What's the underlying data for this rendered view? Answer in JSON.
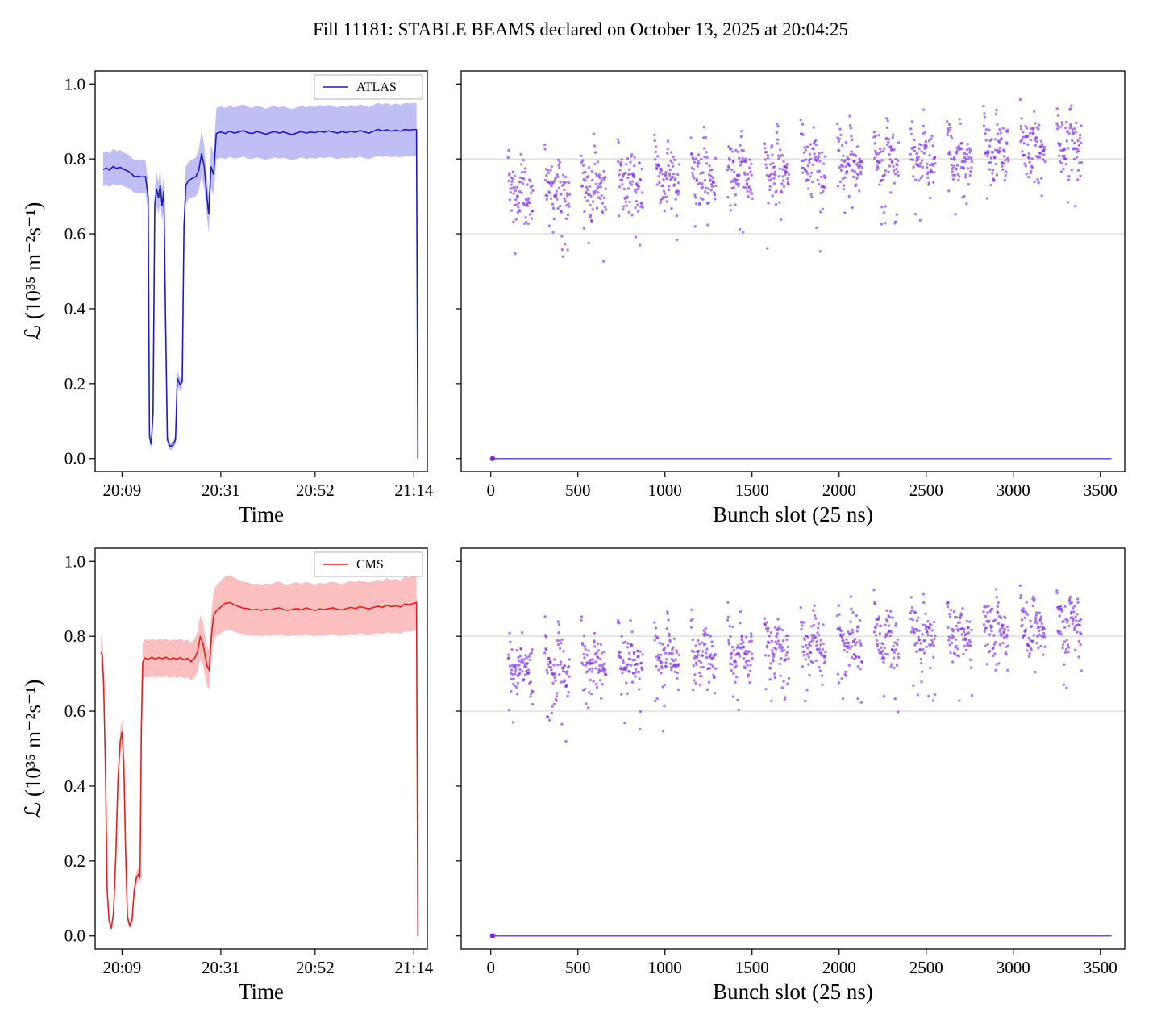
{
  "title": "Fill 11181: STABLE BEAMS declared on October 13, 2025 at 20:04:25",
  "chart_data": [
    {
      "id": "atlas-time-chart",
      "type": "line",
      "legend": "ATLAS",
      "xlabel": "Time",
      "ylabel": "ℒ (10³⁵ m⁻²s⁻¹)",
      "line_color": "#1c1cc0",
      "band_color": "rgba(95,95,230,0.40)",
      "xlim": [
        3,
        77
      ],
      "ylim": [
        -0.035,
        1.035
      ],
      "xticks": [
        {
          "v": 9,
          "label": "20:09"
        },
        {
          "v": 31,
          "label": "20:31"
        },
        {
          "v": 52,
          "label": "20:52"
        },
        {
          "v": 74,
          "label": "21:14"
        }
      ],
      "yticks": [
        {
          "v": 0,
          "label": "0.0"
        },
        {
          "v": 0.2,
          "label": "0.2"
        },
        {
          "v": 0.4,
          "label": "0.4"
        },
        {
          "v": 0.6,
          "label": "0.6"
        },
        {
          "v": 0.8,
          "label": "0.8"
        },
        {
          "v": 1.0,
          "label": "1.0"
        }
      ],
      "ytick_labels": true,
      "points": [
        [
          4.8,
          0.772,
          0.045
        ],
        [
          5.5,
          0.776,
          0.045
        ],
        [
          6.2,
          0.77,
          0.045
        ],
        [
          7,
          0.78,
          0.047
        ],
        [
          7.8,
          0.775,
          0.046
        ],
        [
          8.6,
          0.778,
          0.046
        ],
        [
          9.4,
          0.772,
          0.045
        ],
        [
          10.2,
          0.768,
          0.045
        ],
        [
          11,
          0.762,
          0.044
        ],
        [
          11.8,
          0.752,
          0.044
        ],
        [
          12.6,
          0.754,
          0.044
        ],
        [
          13.4,
          0.752,
          0.044
        ],
        [
          14.2,
          0.753,
          0.044
        ],
        [
          14.8,
          0.7,
          0.04
        ],
        [
          15.1,
          0.06,
          0.015
        ],
        [
          15.5,
          0.038,
          0.012
        ],
        [
          15.9,
          0.12,
          0.02
        ],
        [
          16.3,
          0.68,
          0.042
        ],
        [
          16.7,
          0.72,
          0.044
        ],
        [
          17.1,
          0.695,
          0.043
        ],
        [
          17.5,
          0.73,
          0.044
        ],
        [
          17.9,
          0.675,
          0.042
        ],
        [
          18.3,
          0.715,
          0.044
        ],
        [
          18.7,
          0.36,
          0.025
        ],
        [
          19.1,
          0.05,
          0.012
        ],
        [
          19.7,
          0.032,
          0.01
        ],
        [
          20.3,
          0.036,
          0.01
        ],
        [
          20.9,
          0.05,
          0.012
        ],
        [
          21.3,
          0.215,
          0.02
        ],
        [
          21.9,
          0.198,
          0.018
        ],
        [
          22.4,
          0.205,
          0.018
        ],
        [
          22.8,
          0.62,
          0.04
        ],
        [
          23.2,
          0.73,
          0.05
        ],
        [
          23.8,
          0.742,
          0.05
        ],
        [
          24.6,
          0.748,
          0.05
        ],
        [
          25.4,
          0.752,
          0.052
        ],
        [
          26.1,
          0.77,
          0.055
        ],
        [
          26.7,
          0.815,
          0.06
        ],
        [
          27.3,
          0.78,
          0.057
        ],
        [
          27.9,
          0.7,
          0.052
        ],
        [
          28.3,
          0.652,
          0.05
        ],
        [
          28.8,
          0.78,
          0.057
        ],
        [
          29.4,
          0.758,
          0.056
        ],
        [
          30,
          0.868,
          0.068
        ],
        [
          31,
          0.872,
          0.069
        ],
        [
          32,
          0.868,
          0.068
        ],
        [
          33,
          0.874,
          0.069
        ],
        [
          34,
          0.869,
          0.068
        ],
        [
          35,
          0.872,
          0.069
        ],
        [
          36,
          0.876,
          0.07
        ],
        [
          37,
          0.87,
          0.069
        ],
        [
          38,
          0.868,
          0.068
        ],
        [
          39,
          0.873,
          0.069
        ],
        [
          40,
          0.87,
          0.069
        ],
        [
          41,
          0.866,
          0.068
        ],
        [
          42,
          0.87,
          0.069
        ],
        [
          43,
          0.873,
          0.069
        ],
        [
          44,
          0.869,
          0.068
        ],
        [
          45,
          0.872,
          0.069
        ],
        [
          46,
          0.868,
          0.068
        ],
        [
          47,
          0.865,
          0.068
        ],
        [
          48,
          0.87,
          0.069
        ],
        [
          49,
          0.873,
          0.069
        ],
        [
          50,
          0.869,
          0.069
        ],
        [
          51,
          0.872,
          0.069
        ],
        [
          52,
          0.87,
          0.069
        ],
        [
          53,
          0.874,
          0.07
        ],
        [
          54,
          0.871,
          0.069
        ],
        [
          55,
          0.875,
          0.07
        ],
        [
          56,
          0.872,
          0.069
        ],
        [
          57,
          0.869,
          0.069
        ],
        [
          58,
          0.873,
          0.07
        ],
        [
          59,
          0.87,
          0.069
        ],
        [
          60,
          0.874,
          0.07
        ],
        [
          61,
          0.871,
          0.069
        ],
        [
          62,
          0.876,
          0.07
        ],
        [
          63,
          0.872,
          0.07
        ],
        [
          64,
          0.869,
          0.069
        ],
        [
          65,
          0.874,
          0.07
        ],
        [
          66,
          0.879,
          0.071
        ],
        [
          67,
          0.875,
          0.07
        ],
        [
          68,
          0.878,
          0.071
        ],
        [
          69,
          0.874,
          0.07
        ],
        [
          70,
          0.877,
          0.071
        ],
        [
          71,
          0.874,
          0.07
        ],
        [
          72,
          0.879,
          0.071
        ],
        [
          73,
          0.877,
          0.071
        ],
        [
          74,
          0.879,
          0.071
        ],
        [
          74.6,
          0.878,
          0.071
        ],
        [
          74.9,
          0.0,
          0.0
        ]
      ]
    },
    {
      "id": "atlas-bunch-chart",
      "type": "scatter",
      "xlabel": "Bunch slot (25 ns)",
      "dot_color": "#7a2be2",
      "zero_line_color": "#4433cc",
      "hlines": [
        0.6,
        0.8
      ],
      "hline_color": "#cfcfcf",
      "xlim": [
        -170,
        3640
      ],
      "ylim": [
        -0.035,
        1.035
      ],
      "xticks": [
        {
          "v": 0,
          "label": "0"
        },
        {
          "v": 500,
          "label": "500"
        },
        {
          "v": 1000,
          "label": "1000"
        },
        {
          "v": 1500,
          "label": "1500"
        },
        {
          "v": 2000,
          "label": "2000"
        },
        {
          "v": 2500,
          "label": "2500"
        },
        {
          "v": 3000,
          "label": "3000"
        },
        {
          "v": 3500,
          "label": "3500"
        }
      ],
      "yticks": [
        {
          "v": 0,
          "label": "0.0"
        },
        {
          "v": 0.2,
          "label": "0.2"
        },
        {
          "v": 0.4,
          "label": "0.4"
        },
        {
          "v": 0.6,
          "label": "0.6"
        },
        {
          "v": 0.8,
          "label": "0.8"
        },
        {
          "v": 1.0,
          "label": "1.0"
        }
      ],
      "ytick_labels": false,
      "zero_line": {
        "x_start": 0,
        "x_end": 3564,
        "y": 0
      },
      "zero_marker": {
        "x": 10,
        "y": 0
      },
      "trains": {
        "count": 16,
        "first_slot": 100,
        "pitch": 210,
        "bunches": 72,
        "slot_spacing": 2,
        "base_start": 0.695,
        "base_end": 0.82,
        "subtrain": 36,
        "amp": 0.105,
        "noise": 0.028,
        "outlier_frac": 0.07,
        "ymax": 0.965,
        "ymin": 0.5,
        "seed": 11
      }
    },
    {
      "id": "cms-time-chart",
      "type": "line",
      "legend": "CMS",
      "xlabel": "Time",
      "ylabel": "ℒ (10³⁵ m⁻²s⁻¹)",
      "line_color": "#e01f1f",
      "band_color": "rgba(245,95,95,0.40)",
      "xlim": [
        3,
        77
      ],
      "ylim": [
        -0.035,
        1.035
      ],
      "xticks": [
        {
          "v": 9,
          "label": "20:09"
        },
        {
          "v": 31,
          "label": "20:31"
        },
        {
          "v": 52,
          "label": "20:52"
        },
        {
          "v": 74,
          "label": "21:14"
        }
      ],
      "yticks": [
        {
          "v": 0,
          "label": "0.0"
        },
        {
          "v": 0.2,
          "label": "0.2"
        },
        {
          "v": 0.4,
          "label": "0.4"
        },
        {
          "v": 0.6,
          "label": "0.6"
        },
        {
          "v": 0.8,
          "label": "0.8"
        },
        {
          "v": 1.0,
          "label": "1.0"
        }
      ],
      "ytick_labels": true,
      "points": [
        [
          4.3,
          0.757,
          0.045
        ],
        [
          4.6,
          0.75,
          0.045
        ],
        [
          4.9,
          0.672,
          0.042
        ],
        [
          5.3,
          0.45,
          0.03
        ],
        [
          5.7,
          0.12,
          0.015
        ],
        [
          6.1,
          0.04,
          0.01
        ],
        [
          6.6,
          0.02,
          0.008
        ],
        [
          7.1,
          0.06,
          0.012
        ],
        [
          7.6,
          0.21,
          0.02
        ],
        [
          8.1,
          0.42,
          0.028
        ],
        [
          8.6,
          0.52,
          0.032
        ],
        [
          9,
          0.545,
          0.033
        ],
        [
          9.4,
          0.46,
          0.03
        ],
        [
          9.8,
          0.22,
          0.02
        ],
        [
          10.2,
          0.05,
          0.012
        ],
        [
          10.7,
          0.028,
          0.01
        ],
        [
          11.2,
          0.04,
          0.01
        ],
        [
          11.7,
          0.12,
          0.016
        ],
        [
          12.2,
          0.155,
          0.018
        ],
        [
          12.7,
          0.165,
          0.018
        ],
        [
          13,
          0.155,
          0.018
        ],
        [
          13.3,
          0.55,
          0.035
        ],
        [
          13.6,
          0.73,
          0.05
        ],
        [
          14,
          0.742,
          0.05
        ],
        [
          14.8,
          0.738,
          0.05
        ],
        [
          15.6,
          0.744,
          0.05
        ],
        [
          16.4,
          0.739,
          0.05
        ],
        [
          17.2,
          0.743,
          0.05
        ],
        [
          18,
          0.74,
          0.05
        ],
        [
          18.8,
          0.744,
          0.05
        ],
        [
          19.6,
          0.738,
          0.05
        ],
        [
          20.4,
          0.742,
          0.05
        ],
        [
          21.2,
          0.739,
          0.05
        ],
        [
          22,
          0.743,
          0.05
        ],
        [
          22.8,
          0.737,
          0.05
        ],
        [
          23.6,
          0.741,
          0.05
        ],
        [
          24.4,
          0.732,
          0.05
        ],
        [
          25.2,
          0.742,
          0.052
        ],
        [
          25.8,
          0.758,
          0.054
        ],
        [
          26.4,
          0.798,
          0.058
        ],
        [
          27,
          0.782,
          0.057
        ],
        [
          27.6,
          0.74,
          0.054
        ],
        [
          28,
          0.718,
          0.052
        ],
        [
          28.4,
          0.71,
          0.052
        ],
        [
          28.9,
          0.8,
          0.06
        ],
        [
          29.4,
          0.855,
          0.065
        ],
        [
          30,
          0.868,
          0.068
        ],
        [
          31,
          0.878,
          0.07
        ],
        [
          32,
          0.888,
          0.073
        ],
        [
          33,
          0.89,
          0.073
        ],
        [
          34,
          0.884,
          0.072
        ],
        [
          35,
          0.879,
          0.071
        ],
        [
          36,
          0.875,
          0.07
        ],
        [
          37,
          0.874,
          0.07
        ],
        [
          38,
          0.87,
          0.069
        ],
        [
          39,
          0.872,
          0.069
        ],
        [
          40,
          0.869,
          0.069
        ],
        [
          41,
          0.872,
          0.069
        ],
        [
          42,
          0.87,
          0.069
        ],
        [
          43,
          0.874,
          0.07
        ],
        [
          44,
          0.876,
          0.07
        ],
        [
          45,
          0.871,
          0.069
        ],
        [
          46,
          0.869,
          0.069
        ],
        [
          47,
          0.872,
          0.07
        ],
        [
          48,
          0.874,
          0.07
        ],
        [
          49,
          0.87,
          0.069
        ],
        [
          50,
          0.876,
          0.07
        ],
        [
          51,
          0.872,
          0.07
        ],
        [
          52,
          0.869,
          0.069
        ],
        [
          53,
          0.873,
          0.07
        ],
        [
          54,
          0.871,
          0.069
        ],
        [
          55,
          0.874,
          0.07
        ],
        [
          56,
          0.876,
          0.07
        ],
        [
          57,
          0.872,
          0.07
        ],
        [
          58,
          0.87,
          0.069
        ],
        [
          59,
          0.874,
          0.07
        ],
        [
          60,
          0.877,
          0.071
        ],
        [
          61,
          0.874,
          0.07
        ],
        [
          62,
          0.879,
          0.071
        ],
        [
          63,
          0.876,
          0.07
        ],
        [
          64,
          0.873,
          0.07
        ],
        [
          65,
          0.877,
          0.071
        ],
        [
          66,
          0.88,
          0.071
        ],
        [
          67,
          0.877,
          0.071
        ],
        [
          68,
          0.883,
          0.072
        ],
        [
          69,
          0.879,
          0.071
        ],
        [
          70,
          0.881,
          0.072
        ],
        [
          71,
          0.878,
          0.071
        ],
        [
          72,
          0.886,
          0.073
        ],
        [
          73,
          0.884,
          0.072
        ],
        [
          74,
          0.888,
          0.073
        ],
        [
          74.6,
          0.89,
          0.073
        ],
        [
          74.9,
          0.0,
          0.0
        ]
      ]
    },
    {
      "id": "cms-bunch-chart",
      "type": "scatter",
      "xlabel": "Bunch slot (25 ns)",
      "dot_color": "#7a2be2",
      "zero_line_color": "#5a2bd0",
      "hlines": [
        0.6,
        0.8
      ],
      "hline_color": "#cfcfcf",
      "xlim": [
        -170,
        3640
      ],
      "ylim": [
        -0.035,
        1.035
      ],
      "xticks": [
        {
          "v": 0,
          "label": "0"
        },
        {
          "v": 500,
          "label": "500"
        },
        {
          "v": 1000,
          "label": "1000"
        },
        {
          "v": 1500,
          "label": "1500"
        },
        {
          "v": 2000,
          "label": "2000"
        },
        {
          "v": 2500,
          "label": "2500"
        },
        {
          "v": 3000,
          "label": "3000"
        },
        {
          "v": 3500,
          "label": "3500"
        }
      ],
      "yticks": [
        {
          "v": 0,
          "label": "0.0"
        },
        {
          "v": 0.2,
          "label": "0.2"
        },
        {
          "v": 0.4,
          "label": "0.4"
        },
        {
          "v": 0.6,
          "label": "0.6"
        },
        {
          "v": 0.8,
          "label": "0.8"
        },
        {
          "v": 1.0,
          "label": "1.0"
        }
      ],
      "ytick_labels": false,
      "zero_line": {
        "x_start": 0,
        "x_end": 3564,
        "y": 0
      },
      "zero_marker": {
        "x": 10,
        "y": 0
      },
      "trains": {
        "count": 16,
        "first_slot": 100,
        "pitch": 210,
        "bunches": 72,
        "slot_spacing": 2,
        "base_start": 0.69,
        "base_end": 0.815,
        "subtrain": 36,
        "amp": 0.105,
        "noise": 0.028,
        "outlier_frac": 0.07,
        "ymax": 0.97,
        "ymin": 0.5,
        "seed": 29
      }
    }
  ]
}
